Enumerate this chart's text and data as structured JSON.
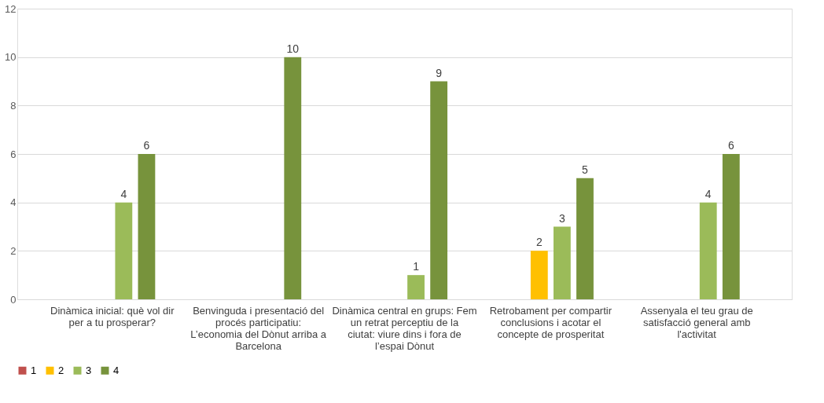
{
  "chart_data": {
    "type": "bar",
    "categories": [
      "Dinàmica inicial: què vol dir per a tu prosperar?",
      "Benvinguda i presentació del procés participatiu: L’economia del Dònut arriba a Barcelona",
      "Dinàmica central en grups: Fem un retrat perceptiu de la ciutat: viure dins i fora de l’espai Dònut",
      "Retrobament per compartir conclusions i acotar el concepte de prosperitat",
      "Assenyala el teu grau de satisfacció general amb l'activitat"
    ],
    "series": [
      {
        "name": "1",
        "color": "#c0504d",
        "values": [
          null,
          null,
          null,
          null,
          null
        ]
      },
      {
        "name": "2",
        "color": "#ffc000",
        "values": [
          null,
          null,
          null,
          2,
          null
        ]
      },
      {
        "name": "3",
        "color": "#9bbb59",
        "values": [
          4,
          null,
          1,
          3,
          4
        ]
      },
      {
        "name": "4",
        "color": "#77933c",
        "values": [
          6,
          10,
          9,
          5,
          6
        ]
      }
    ],
    "ylim": [
      0,
      12
    ],
    "yticks": [
      0,
      2,
      4,
      6,
      8,
      10,
      12
    ],
    "grid": "y",
    "legend": "bottom",
    "data_labels": true
  }
}
